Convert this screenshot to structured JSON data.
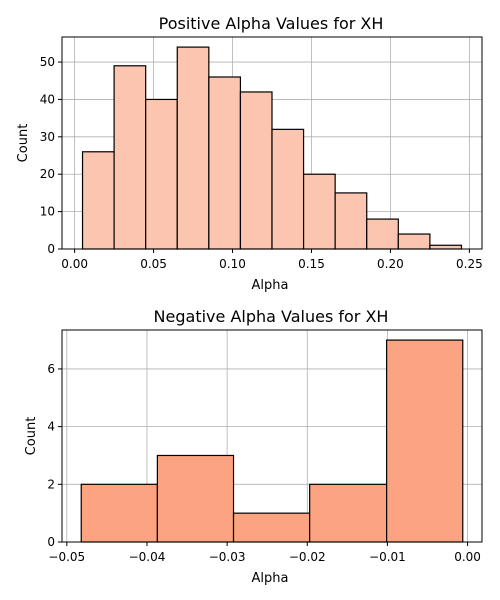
{
  "chart_data": [
    {
      "type": "bar",
      "title": "Positive Alpha Values for XH",
      "xlabel": "Alpha",
      "ylabel": "Count",
      "bin_edges": [
        0.005,
        0.025,
        0.045,
        0.065,
        0.085,
        0.105,
        0.125,
        0.145,
        0.165,
        0.185,
        0.205,
        0.225,
        0.245
      ],
      "values": [
        26,
        49,
        40,
        54,
        46,
        42,
        32,
        20,
        15,
        8,
        4,
        1
      ],
      "xlim": [
        -0.008,
        0.258
      ],
      "ylim": [
        0,
        56.7
      ],
      "xticks": [
        0.0,
        0.05,
        0.1,
        0.15,
        0.2,
        0.25
      ],
      "xtick_labels": [
        "0.00",
        "0.05",
        "0.10",
        "0.15",
        "0.20",
        "0.25"
      ],
      "yticks": [
        0,
        10,
        20,
        30,
        40,
        50
      ],
      "ytick_labels": [
        "0",
        "10",
        "20",
        "30",
        "40",
        "50"
      ],
      "grid": true,
      "bar_color": "#fcc5b0",
      "edge_color": "#000000"
    },
    {
      "type": "bar",
      "title": "Negative Alpha Values for XH",
      "xlabel": "Alpha",
      "ylabel": "Count",
      "bin_edges": [
        -0.0482,
        -0.0387,
        -0.0292,
        -0.0197,
        -0.0101,
        -0.0006
      ],
      "values": [
        2,
        3,
        1,
        2,
        7
      ],
      "xlim": [
        -0.0506,
        0.0018
      ],
      "ylim": [
        0,
        7.35
      ],
      "xticks": [
        -0.05,
        -0.04,
        -0.03,
        -0.02,
        -0.01,
        0.0
      ],
      "xtick_labels": [
        "−0.05",
        "−0.04",
        "−0.03",
        "−0.02",
        "−0.01",
        "0.00"
      ],
      "yticks": [
        0,
        2,
        4,
        6
      ],
      "ytick_labels": [
        "0",
        "2",
        "4",
        "6"
      ],
      "grid": true,
      "bar_color": "#fca482",
      "edge_color": "#000000"
    }
  ]
}
